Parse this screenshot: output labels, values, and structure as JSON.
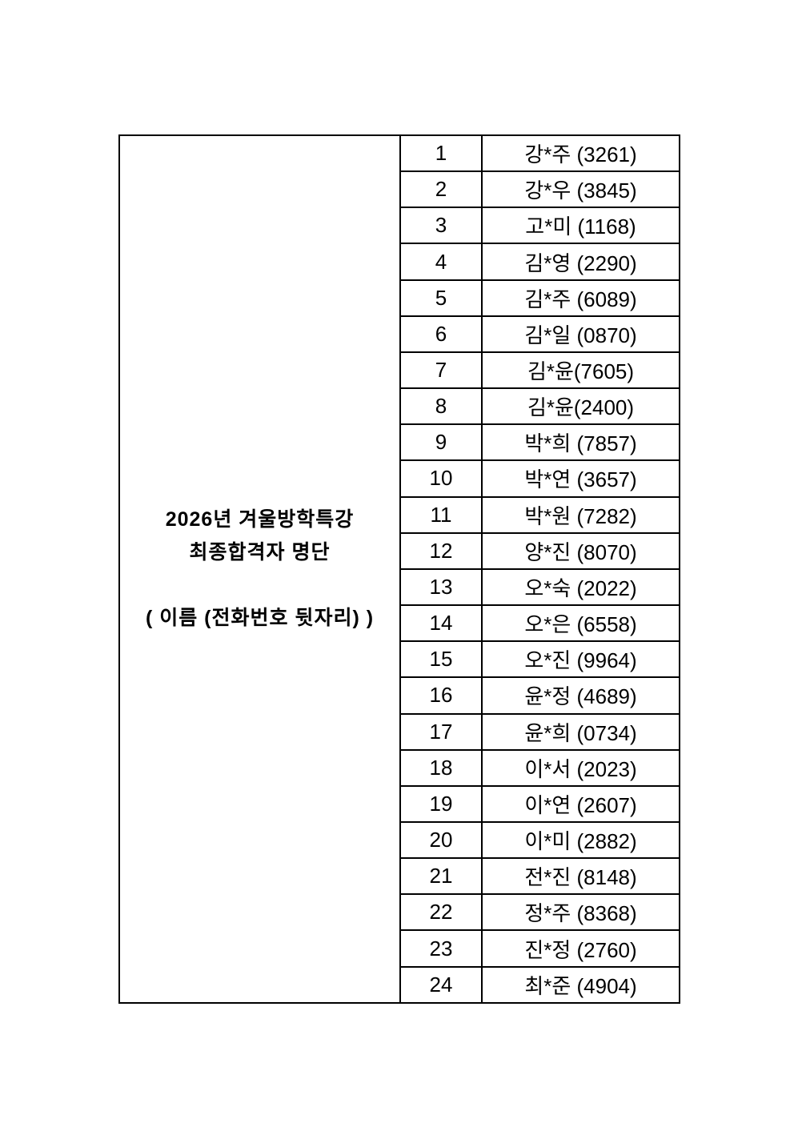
{
  "colors": {
    "page_background": "#ffffff",
    "table_border": "#000000",
    "text": "#000000"
  },
  "table": {
    "title_lines": [
      "2026년 겨울방학특강",
      "최종합격자 명단"
    ],
    "format_note": "( 이름 (전화번호 뒷자리) )",
    "rows": [
      {
        "no": "1",
        "name": "강*주 (3261)"
      },
      {
        "no": "2",
        "name": "강*우 (3845)"
      },
      {
        "no": "3",
        "name": "고*미 (1168)"
      },
      {
        "no": "4",
        "name": "김*영 (2290)"
      },
      {
        "no": "5",
        "name": "김*주 (6089)"
      },
      {
        "no": "6",
        "name": "김*일 (0870)"
      },
      {
        "no": "7",
        "name": "김*윤(7605)"
      },
      {
        "no": "8",
        "name": "김*윤(2400)"
      },
      {
        "no": "9",
        "name": "박*희 (7857)"
      },
      {
        "no": "10",
        "name": "박*연 (3657)"
      },
      {
        "no": "11",
        "name": "박*원 (7282)"
      },
      {
        "no": "12",
        "name": "양*진 (8070)"
      },
      {
        "no": "13",
        "name": "오*숙 (2022)"
      },
      {
        "no": "14",
        "name": "오*은 (6558)"
      },
      {
        "no": "15",
        "name": "오*진 (9964)"
      },
      {
        "no": "16",
        "name": "윤*정 (4689)"
      },
      {
        "no": "17",
        "name": "윤*희 (0734)"
      },
      {
        "no": "18",
        "name": "이*서 (2023)"
      },
      {
        "no": "19",
        "name": "이*연 (2607)"
      },
      {
        "no": "20",
        "name": "이*미 (2882)"
      },
      {
        "no": "21",
        "name": "전*진 (8148)"
      },
      {
        "no": "22",
        "name": "정*주 (8368)"
      },
      {
        "no": "23",
        "name": "진*정 (2760)"
      },
      {
        "no": "24",
        "name": "최*준 (4904)"
      }
    ]
  }
}
